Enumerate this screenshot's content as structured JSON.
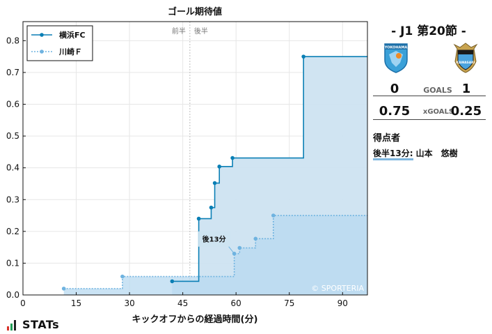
{
  "chart_data": {
    "type": "line",
    "title": "ゴール期待値",
    "xlabel": "キックオフからの経過時間(分)",
    "ylabel": "",
    "xlim": [
      0,
      97
    ],
    "ylim": [
      0,
      0.86
    ],
    "xticks": [
      0,
      15,
      30,
      45,
      60,
      75,
      90
    ],
    "yticks": [
      0.0,
      0.1,
      0.2,
      0.3,
      0.4,
      0.5,
      0.6,
      0.7,
      0.8
    ],
    "ytick_labels": [
      "0.0",
      "0.1",
      "0.2",
      "0.3",
      "0.4",
      "0.5",
      "0.6",
      "0.7",
      "0.8"
    ],
    "grid": true,
    "legend_position": "top-left",
    "halftime_minute": 47,
    "halftime_labels": [
      "前半",
      "後半"
    ],
    "watermark": "© SPORTERIA",
    "series": [
      {
        "name": "横浜FC",
        "style": "solid",
        "color": "#0a7fb5",
        "fill": "#cde3f1",
        "points": [
          [
            42,
            0.043
          ],
          [
            49.5,
            0.24
          ],
          [
            53,
            0.275
          ],
          [
            54,
            0.352
          ],
          [
            55.3,
            0.404
          ],
          [
            59,
            0.431
          ],
          [
            79,
            0.75
          ],
          [
            97,
            0.75
          ]
        ]
      },
      {
        "name": "川崎Ｆ",
        "style": "dotted",
        "color": "#6fb3e0",
        "fill": "#b8d9f0",
        "points": [
          [
            11.5,
            0.02
          ],
          [
            28,
            0.058
          ],
          [
            59.5,
            0.13
          ],
          [
            61,
            0.148
          ],
          [
            65.5,
            0.177
          ],
          [
            70.5,
            0.25
          ],
          [
            97,
            0.25
          ]
        ]
      }
    ],
    "annotations": [
      {
        "text": "後13分",
        "x": 59.5,
        "y": 0.13
      }
    ]
  },
  "match": {
    "title": "-  J1 第20節  -",
    "home_score": "0",
    "away_score": "1",
    "goals_label": "GOALS",
    "home_xg": "0.75",
    "away_xg": "0.25",
    "xg_label": "xGOALS",
    "home_crest_text": "YOKOHAMA",
    "away_crest_text": "KAWASAKI",
    "home_crest_icon": "yokohama-fc-crest-icon",
    "away_crest_icon": "kawasaki-frontale-crest-icon"
  },
  "scorers": {
    "title": "得点者",
    "items": [
      {
        "text": "後半13分: 山本　悠樹"
      }
    ]
  },
  "branding": {
    "logo_text": "STATs",
    "logo_icon": "stats-bars-icon"
  }
}
